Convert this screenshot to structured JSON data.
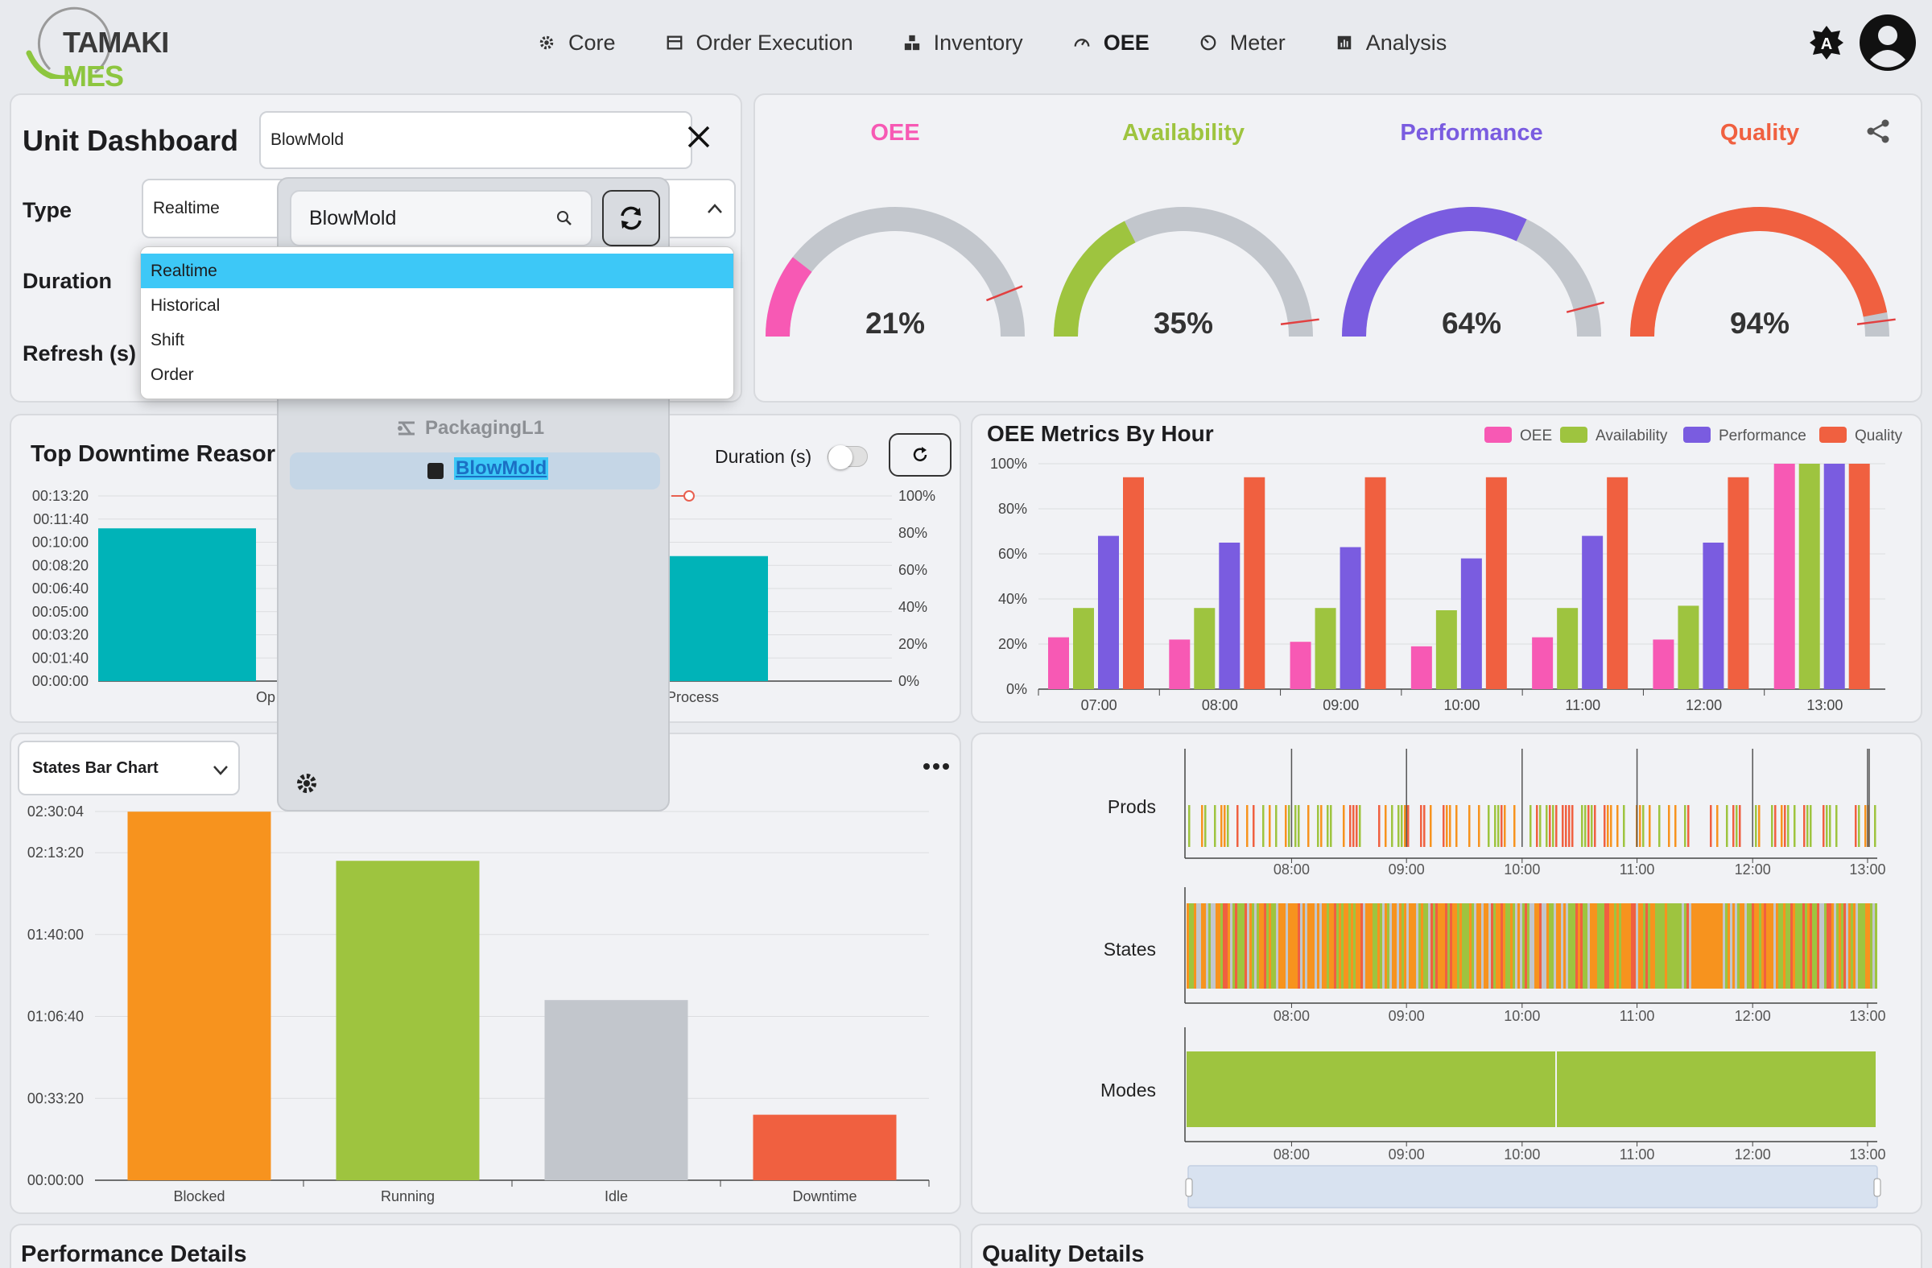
{
  "app": {
    "brand_part1": "TAMAKI",
    "brand_part2": "MES",
    "colors": {
      "brand_green": "#8dc63f",
      "selection": "#3dc8f7"
    }
  },
  "nav": {
    "items": [
      {
        "label": "Core",
        "icon": "gear-icon"
      },
      {
        "label": "Order Execution",
        "icon": "store-icon"
      },
      {
        "label": "Inventory",
        "icon": "boxes-icon"
      },
      {
        "label": "OEE",
        "icon": "gauge-icon",
        "active": true
      },
      {
        "label": "Meter",
        "icon": "meter-icon"
      },
      {
        "label": "Analysis",
        "icon": "chart-icon"
      }
    ],
    "theme_badge": "A"
  },
  "unit": {
    "title": "Unit Dashboard",
    "unit_value": "BlowMold",
    "type_label": "Type",
    "type_value": "Realtime",
    "duration_label": "Duration",
    "refresh_label": "Refresh (s)",
    "type_options": [
      "Realtime",
      "Historical",
      "Shift",
      "Order"
    ]
  },
  "tree": {
    "search_value": "BlowMold",
    "nodes": [
      {
        "label": "PackagingL1",
        "icon": "line-icon"
      },
      {
        "label": "BlowMold",
        "icon": "unit-icon",
        "selected": true
      }
    ]
  },
  "gauges": [
    {
      "label": "OEE",
      "value": 21,
      "display": "21%",
      "color": "#f759b4",
      "target": 88
    },
    {
      "label": "Availability",
      "value": 35,
      "display": "35%",
      "color": "#9ec43f",
      "target": 96
    },
    {
      "label": "Performance",
      "value": 64,
      "display": "64%",
      "color": "#7a5ce0",
      "target": 92
    },
    {
      "label": "Quality",
      "value": 94,
      "display": "94%",
      "color": "#f06040",
      "target": 96
    }
  ],
  "downtime": {
    "title": "Top Downtime Reasor",
    "duration_toggle_label": "Duration (s)",
    "y_ticks": [
      "00:13:20",
      "00:11:40",
      "00:10:00",
      "00:08:20",
      "00:06:40",
      "00:05:00",
      "00:03:20",
      "00:01:40",
      "00:00:00"
    ],
    "y2_ticks": [
      "100%",
      "80%",
      "60%",
      "40%",
      "20%",
      "0%"
    ],
    "x_labels": [
      "Op",
      "Process"
    ]
  },
  "states_panel": {
    "select_value": "States Bar Chart"
  },
  "perf_title": "Performance Details",
  "qual_title": "Quality Details",
  "timeline": {
    "rows": [
      "Prods",
      "States",
      "Modes"
    ],
    "x_ticks": [
      "08:00",
      "09:00",
      "10:00",
      "11:00",
      "12:00",
      "13:00"
    ]
  },
  "chart_data": [
    {
      "type": "bar",
      "title": "OEE Metrics By Hour",
      "categories": [
        "07:00",
        "08:00",
        "09:00",
        "10:00",
        "11:00",
        "12:00",
        "13:00"
      ],
      "series": [
        {
          "name": "OEE",
          "color": "#f759b4",
          "values": [
            23,
            22,
            21,
            19,
            23,
            22,
            100
          ]
        },
        {
          "name": "Availability",
          "color": "#9ec43f",
          "values": [
            36,
            36,
            36,
            35,
            36,
            37,
            100
          ]
        },
        {
          "name": "Performance",
          "color": "#7a5ce0",
          "values": [
            68,
            65,
            63,
            58,
            68,
            65,
            100
          ]
        },
        {
          "name": "Quality",
          "color": "#f06040",
          "values": [
            94,
            94,
            94,
            94,
            94,
            94,
            100
          ]
        }
      ],
      "y_ticks": [
        "100%",
        "80%",
        "60%",
        "40%",
        "20%",
        "0%"
      ],
      "ylim": [
        0,
        100
      ],
      "legend": "top-right"
    },
    {
      "type": "bar",
      "title": "",
      "categories": [
        "Blocked",
        "Running",
        "Idle",
        "Downtime"
      ],
      "values": [
        9000,
        7800,
        4400,
        1600
      ],
      "colors": [
        "#f7931e",
        "#9ec43f",
        "#c2c6cc",
        "#f06040"
      ],
      "y_ticks": [
        "02:30:04",
        "02:13:20",
        "01:40:00",
        "01:06:40",
        "00:33:20",
        "00:00:00"
      ],
      "ylim": [
        0,
        9004
      ]
    },
    {
      "type": "bar",
      "title": "Top Downtime Reasor",
      "categories": [
        "Op",
        "Process"
      ],
      "values": [
        660,
        540
      ],
      "color": "#00b3b8",
      "ylim": [
        0,
        800
      ]
    }
  ]
}
